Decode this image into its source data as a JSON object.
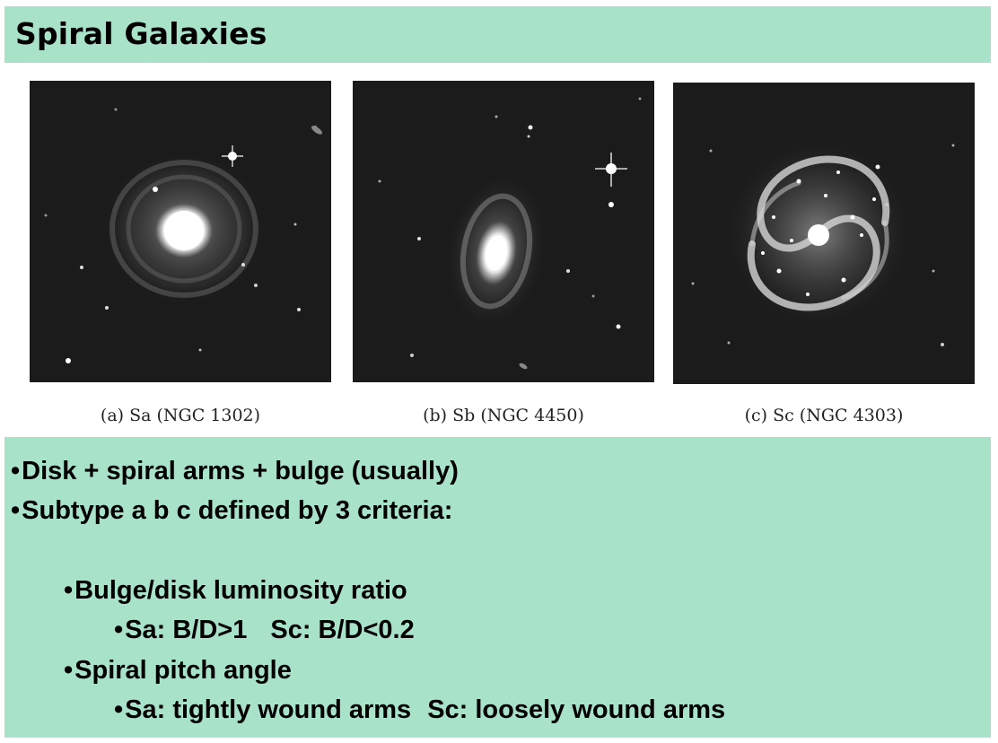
{
  "slide": {
    "title": "Spiral Galaxies"
  },
  "figures": [
    {
      "caption": "(a) Sa (NGC 1302)"
    },
    {
      "caption": "(b) Sb (NGC 4450)"
    },
    {
      "caption": "(c) Sc (NGC 4303)"
    }
  ],
  "bullets": {
    "bullet_char": "•",
    "line1": "Disk + spiral arms + bulge (usually)",
    "line2": "Subtype a b c defined by 3 criteria:",
    "line3": "Bulge/disk luminosity ratio",
    "line4a": "Sa: B/D>1",
    "line4b": "Sc: B/D<0.2",
    "line5": "Spiral pitch angle",
    "line6a": "Sa: tightly wound arms",
    "line6b": "Sc: loosely wound arms"
  },
  "colors": {
    "accent_green": "#a8e2c8",
    "sky_black": "#1b1b1b"
  }
}
